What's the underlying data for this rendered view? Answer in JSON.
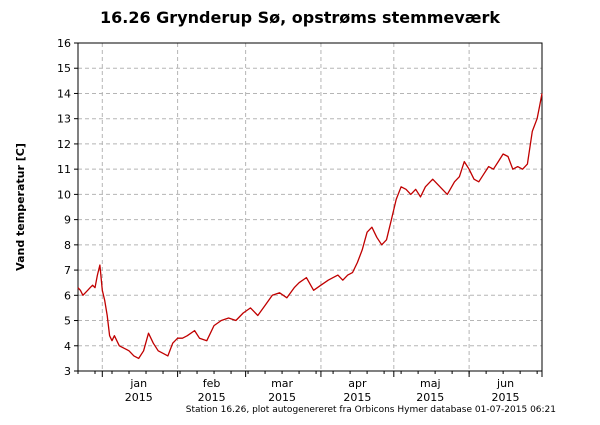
{
  "chart_data": {
    "type": "line",
    "title": "16.26 Grynderup Sø, opstrøms stemmeværk",
    "ylabel": "Vand temperatur [C]",
    "xlabel": "",
    "ylim": [
      3,
      16
    ],
    "yticks": [
      3,
      4,
      5,
      6,
      7,
      8,
      9,
      10,
      11,
      12,
      13,
      14,
      15,
      16
    ],
    "xlim": [
      "2014-12-22",
      "2015-07-01"
    ],
    "x_month_ticks": [
      "2015-01-01",
      "2015-02-01",
      "2015-03-01",
      "2015-04-01",
      "2015-05-01",
      "2015-06-01",
      "2015-07-01"
    ],
    "x_month_labels": [
      {
        "month": "jan",
        "year": "2015",
        "center": "2015-01-16"
      },
      {
        "month": "feb",
        "year": "2015",
        "center": "2015-02-15"
      },
      {
        "month": "mar",
        "year": "2015",
        "center": "2015-03-16"
      },
      {
        "month": "apr",
        "year": "2015",
        "center": "2015-04-16"
      },
      {
        "month": "maj",
        "year": "2015",
        "center": "2015-05-16"
      },
      {
        "month": "jun",
        "year": "2015",
        "center": "2015-06-16"
      }
    ],
    "grid": true,
    "line_color": "#c00000",
    "series": [
      {
        "x": [
          "2014-12-22",
          "2014-12-23",
          "2014-12-24",
          "2014-12-25",
          "2014-12-26",
          "2014-12-27",
          "2014-12-28",
          "2014-12-29",
          "2014-12-30",
          "2014-12-31",
          "2015-01-01",
          "2015-01-02",
          "2015-01-03",
          "2015-01-04",
          "2015-01-05",
          "2015-01-06",
          "2015-01-08",
          "2015-01-10",
          "2015-01-12",
          "2015-01-14",
          "2015-01-16",
          "2015-01-18",
          "2015-01-20",
          "2015-01-22",
          "2015-01-24",
          "2015-01-26",
          "2015-01-28",
          "2015-01-30",
          "2015-02-01",
          "2015-02-03",
          "2015-02-05",
          "2015-02-08",
          "2015-02-10",
          "2015-02-13",
          "2015-02-16",
          "2015-02-19",
          "2015-02-22",
          "2015-02-25",
          "2015-02-28",
          "2015-03-03",
          "2015-03-06",
          "2015-03-09",
          "2015-03-12",
          "2015-03-15",
          "2015-03-18",
          "2015-03-21",
          "2015-03-23",
          "2015-03-26",
          "2015-03-29",
          "2015-04-01",
          "2015-04-04",
          "2015-04-06",
          "2015-04-08",
          "2015-04-10",
          "2015-04-12",
          "2015-04-14",
          "2015-04-16",
          "2015-04-18",
          "2015-04-20",
          "2015-04-22",
          "2015-04-24",
          "2015-04-26",
          "2015-04-28",
          "2015-04-30",
          "2015-05-02",
          "2015-05-04",
          "2015-05-06",
          "2015-05-08",
          "2015-05-10",
          "2015-05-12",
          "2015-05-14",
          "2015-05-17",
          "2015-05-20",
          "2015-05-23",
          "2015-05-26",
          "2015-05-28",
          "2015-05-30",
          "2015-06-01",
          "2015-06-03",
          "2015-06-05",
          "2015-06-07",
          "2015-06-09",
          "2015-06-11",
          "2015-06-13",
          "2015-06-15",
          "2015-06-17",
          "2015-06-19",
          "2015-06-21",
          "2015-06-23",
          "2015-06-25",
          "2015-06-27",
          "2015-06-29",
          "2015-06-30",
          "2015-07-01"
        ],
        "values": [
          6.3,
          6.2,
          6.0,
          6.1,
          6.2,
          6.3,
          6.4,
          6.3,
          6.8,
          7.2,
          6.2,
          5.8,
          5.2,
          4.4,
          4.2,
          4.4,
          4.0,
          3.9,
          3.8,
          3.6,
          3.5,
          3.8,
          4.5,
          4.1,
          3.8,
          3.7,
          3.6,
          4.1,
          4.3,
          4.3,
          4.4,
          4.6,
          4.3,
          4.2,
          4.8,
          5.0,
          5.1,
          5.0,
          5.3,
          5.5,
          5.2,
          5.6,
          6.0,
          6.1,
          5.9,
          6.3,
          6.5,
          6.7,
          6.2,
          6.4,
          6.6,
          6.7,
          6.8,
          6.6,
          6.8,
          6.9,
          7.3,
          7.8,
          8.5,
          8.7,
          8.3,
          8.0,
          8.2,
          9.0,
          9.8,
          10.3,
          10.2,
          10.0,
          10.2,
          9.9,
          10.3,
          10.6,
          10.3,
          10.0,
          10.5,
          10.7,
          11.3,
          11.0,
          10.6,
          10.5,
          10.8,
          11.1,
          11.0,
          11.3,
          11.6,
          11.5,
          11.0,
          11.1,
          11.0,
          11.2,
          12.5,
          13.0,
          13.5,
          14.0
        ]
      }
    ]
  },
  "footer_text": "Station 16.26, plot autogenereret fra Orbicons Hymer database 01-07-2015 06:21"
}
